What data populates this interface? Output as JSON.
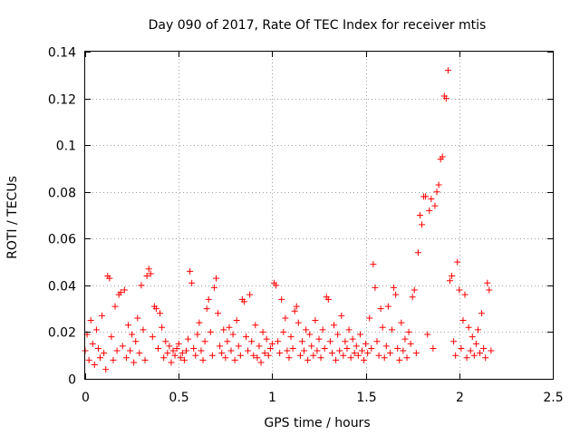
{
  "chart_data": {
    "type": "scatter",
    "title": "Day 090 of 2017, Rate Of TEC Index for receiver mtis",
    "xlabel": "GPS time / hours",
    "ylabel": "ROTI / TECUs",
    "xlim": [
      0,
      2.5
    ],
    "ylim": [
      0,
      0.14
    ],
    "xticks": [
      0,
      0.5,
      1,
      1.5,
      2,
      2.5
    ],
    "xtick_labels": [
      "0",
      "0.5",
      "1",
      "1.5",
      "2",
      "2.5"
    ],
    "yticks": [
      0,
      0.02,
      0.04,
      0.06,
      0.08,
      0.1,
      0.12,
      0.14
    ],
    "ytick_labels": [
      "0",
      "0.02",
      "0.04",
      "0.06",
      "0.08",
      "0.1",
      "0.12",
      "0.14"
    ],
    "grid": true,
    "marker": "+",
    "color": "#ff0000",
    "series": [
      {
        "name": "ROTI",
        "points": [
          [
            0.0,
            0.012
          ],
          [
            0.01,
            0.019
          ],
          [
            0.02,
            0.008
          ],
          [
            0.03,
            0.025
          ],
          [
            0.04,
            0.015
          ],
          [
            0.05,
            0.006
          ],
          [
            0.06,
            0.021
          ],
          [
            0.07,
            0.013
          ],
          [
            0.08,
            0.009
          ],
          [
            0.09,
            0.027
          ],
          [
            0.1,
            0.011
          ],
          [
            0.11,
            0.004
          ],
          [
            0.12,
            0.044
          ],
          [
            0.13,
            0.043
          ],
          [
            0.14,
            0.018
          ],
          [
            0.15,
            0.008
          ],
          [
            0.16,
            0.031
          ],
          [
            0.17,
            0.012
          ],
          [
            0.18,
            0.036
          ],
          [
            0.19,
            0.037
          ],
          [
            0.2,
            0.014
          ],
          [
            0.21,
            0.038
          ],
          [
            0.22,
            0.009
          ],
          [
            0.23,
            0.023
          ],
          [
            0.24,
            0.012
          ],
          [
            0.25,
            0.019
          ],
          [
            0.26,
            0.007
          ],
          [
            0.27,
            0.016
          ],
          [
            0.28,
            0.026
          ],
          [
            0.29,
            0.011
          ],
          [
            0.3,
            0.04
          ],
          [
            0.31,
            0.021
          ],
          [
            0.32,
            0.008
          ],
          [
            0.33,
            0.044
          ],
          [
            0.34,
            0.047
          ],
          [
            0.35,
            0.045
          ],
          [
            0.36,
            0.018
          ],
          [
            0.37,
            0.031
          ],
          [
            0.38,
            0.03
          ],
          [
            0.39,
            0.013
          ],
          [
            0.4,
            0.028
          ],
          [
            0.41,
            0.022
          ],
          [
            0.42,
            0.009
          ],
          [
            0.43,
            0.016
          ],
          [
            0.44,
            0.011
          ],
          [
            0.45,
            0.014
          ],
          [
            0.46,
            0.007
          ],
          [
            0.47,
            0.012
          ],
          [
            0.48,
            0.01
          ],
          [
            0.49,
            0.013
          ],
          [
            0.5,
            0.015
          ],
          [
            0.51,
            0.009
          ],
          [
            0.52,
            0.011
          ],
          [
            0.53,
            0.008
          ],
          [
            0.54,
            0.012
          ],
          [
            0.55,
            0.017
          ],
          [
            0.56,
            0.046
          ],
          [
            0.57,
            0.041
          ],
          [
            0.58,
            0.013
          ],
          [
            0.59,
            0.01
          ],
          [
            0.6,
            0.019
          ],
          [
            0.61,
            0.024
          ],
          [
            0.62,
            0.012
          ],
          [
            0.63,
            0.008
          ],
          [
            0.64,
            0.016
          ],
          [
            0.65,
            0.03
          ],
          [
            0.66,
            0.034
          ],
          [
            0.67,
            0.02
          ],
          [
            0.68,
            0.01
          ],
          [
            0.69,
            0.039
          ],
          [
            0.7,
            0.043
          ],
          [
            0.71,
            0.028
          ],
          [
            0.72,
            0.014
          ],
          [
            0.73,
            0.011
          ],
          [
            0.74,
            0.021
          ],
          [
            0.75,
            0.009
          ],
          [
            0.76,
            0.016
          ],
          [
            0.77,
            0.022
          ],
          [
            0.78,
            0.012
          ],
          [
            0.79,
            0.019
          ],
          [
            0.8,
            0.008
          ],
          [
            0.81,
            0.025
          ],
          [
            0.82,
            0.014
          ],
          [
            0.83,
            0.01
          ],
          [
            0.84,
            0.034
          ],
          [
            0.85,
            0.033
          ],
          [
            0.86,
            0.018
          ],
          [
            0.87,
            0.012
          ],
          [
            0.88,
            0.036
          ],
          [
            0.89,
            0.016
          ],
          [
            0.9,
            0.01
          ],
          [
            0.91,
            0.023
          ],
          [
            0.92,
            0.009
          ],
          [
            0.93,
            0.014
          ],
          [
            0.94,
            0.007
          ],
          [
            0.95,
            0.02
          ],
          [
            0.96,
            0.011
          ],
          [
            0.97,
            0.017
          ],
          [
            0.98,
            0.01
          ],
          [
            0.99,
            0.013
          ],
          [
            1.0,
            0.015
          ],
          [
            1.01,
            0.041
          ],
          [
            1.02,
            0.04
          ],
          [
            1.03,
            0.016
          ],
          [
            1.04,
            0.011
          ],
          [
            1.05,
            0.034
          ],
          [
            1.06,
            0.02
          ],
          [
            1.07,
            0.026
          ],
          [
            1.08,
            0.012
          ],
          [
            1.09,
            0.009
          ],
          [
            1.1,
            0.018
          ],
          [
            1.11,
            0.013
          ],
          [
            1.12,
            0.029
          ],
          [
            1.13,
            0.031
          ],
          [
            1.14,
            0.024
          ],
          [
            1.15,
            0.01
          ],
          [
            1.16,
            0.016
          ],
          [
            1.17,
            0.012
          ],
          [
            1.18,
            0.021
          ],
          [
            1.19,
            0.008
          ],
          [
            1.2,
            0.019
          ],
          [
            1.21,
            0.014
          ],
          [
            1.22,
            0.01
          ],
          [
            1.23,
            0.025
          ],
          [
            1.24,
            0.012
          ],
          [
            1.25,
            0.017
          ],
          [
            1.26,
            0.009
          ],
          [
            1.27,
            0.021
          ],
          [
            1.28,
            0.013
          ],
          [
            1.29,
            0.035
          ],
          [
            1.3,
            0.034
          ],
          [
            1.31,
            0.016
          ],
          [
            1.32,
            0.011
          ],
          [
            1.33,
            0.023
          ],
          [
            1.34,
            0.008
          ],
          [
            1.35,
            0.019
          ],
          [
            1.36,
            0.012
          ],
          [
            1.37,
            0.027
          ],
          [
            1.38,
            0.01
          ],
          [
            1.39,
            0.016
          ],
          [
            1.4,
            0.013
          ],
          [
            1.41,
            0.021
          ],
          [
            1.42,
            0.009
          ],
          [
            1.43,
            0.017
          ],
          [
            1.44,
            0.011
          ],
          [
            1.45,
            0.014
          ],
          [
            1.46,
            0.01
          ],
          [
            1.47,
            0.019
          ],
          [
            1.48,
            0.012
          ],
          [
            1.49,
            0.008
          ],
          [
            1.5,
            0.015
          ],
          [
            1.51,
            0.011
          ],
          [
            1.52,
            0.026
          ],
          [
            1.53,
            0.013
          ],
          [
            1.54,
            0.049
          ],
          [
            1.55,
            0.039
          ],
          [
            1.56,
            0.016
          ],
          [
            1.57,
            0.01
          ],
          [
            1.58,
            0.03
          ],
          [
            1.59,
            0.022
          ],
          [
            1.6,
            0.009
          ],
          [
            1.61,
            0.014
          ],
          [
            1.62,
            0.031
          ],
          [
            1.63,
            0.011
          ],
          [
            1.64,
            0.021
          ],
          [
            1.65,
            0.039
          ],
          [
            1.66,
            0.036
          ],
          [
            1.67,
            0.013
          ],
          [
            1.68,
            0.008
          ],
          [
            1.69,
            0.024
          ],
          [
            1.7,
            0.012
          ],
          [
            1.71,
            0.017
          ],
          [
            1.72,
            0.009
          ],
          [
            1.73,
            0.02
          ],
          [
            1.74,
            0.015
          ],
          [
            1.75,
            0.035
          ],
          [
            1.76,
            0.038
          ],
          [
            1.77,
            0.011
          ],
          [
            1.78,
            0.054
          ],
          [
            1.79,
            0.07
          ],
          [
            1.8,
            0.066
          ],
          [
            1.81,
            0.078
          ],
          [
            1.82,
            0.078
          ],
          [
            1.83,
            0.019
          ],
          [
            1.84,
            0.072
          ],
          [
            1.85,
            0.077
          ],
          [
            1.86,
            0.013
          ],
          [
            1.87,
            0.074
          ],
          [
            1.88,
            0.08
          ],
          [
            1.89,
            0.083
          ],
          [
            1.9,
            0.094
          ],
          [
            1.91,
            0.095
          ],
          [
            1.92,
            0.121
          ],
          [
            1.93,
            0.12
          ],
          [
            1.94,
            0.132
          ],
          [
            1.95,
            0.042
          ],
          [
            1.96,
            0.044
          ],
          [
            1.97,
            0.016
          ],
          [
            1.98,
            0.01
          ],
          [
            1.99,
            0.05
          ],
          [
            2.0,
            0.038
          ],
          [
            2.01,
            0.013
          ],
          [
            2.02,
            0.025
          ],
          [
            2.03,
            0.036
          ],
          [
            2.04,
            0.009
          ],
          [
            2.05,
            0.022
          ],
          [
            2.06,
            0.012
          ],
          [
            2.07,
            0.018
          ],
          [
            2.08,
            0.01
          ],
          [
            2.09,
            0.015
          ],
          [
            2.1,
            0.021
          ],
          [
            2.11,
            0.011
          ],
          [
            2.12,
            0.028
          ],
          [
            2.13,
            0.013
          ],
          [
            2.14,
            0.009
          ],
          [
            2.15,
            0.041
          ],
          [
            2.16,
            0.038
          ],
          [
            2.17,
            0.012
          ]
        ]
      }
    ]
  }
}
